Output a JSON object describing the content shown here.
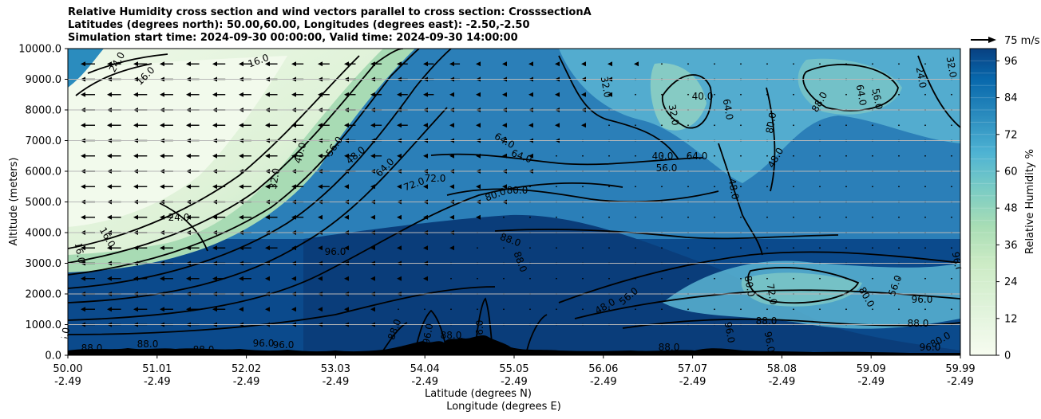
{
  "title_lines": [
    "Relative Humidity cross section and wind vectors parallel to cross section: CrosssectionA",
    "Latitudes (degrees north): 50.00,60.00, Longitudes (degrees east): -2.50,-2.50",
    "Simulation start time: 2024-09-30 00:00:00, Valid time: 2024-09-30 14:00:00"
  ],
  "chart_data": {
    "type": "heatmap",
    "ylabel": "Altitude (meters)",
    "xlabel_lat": "Latitude (degrees N)",
    "xlabel_lon": "Longitude (degrees E)",
    "ylim": [
      0,
      10000
    ],
    "y_ticks": [
      "0.0",
      "1000.0",
      "2000.0",
      "3000.0",
      "4000.0",
      "5000.0",
      "6000.0",
      "7000.0",
      "8000.0",
      "9000.0",
      "10000.0"
    ],
    "x_ticks_lat": [
      "50.00",
      "51.01",
      "52.02",
      "53.03",
      "54.04",
      "55.05",
      "56.06",
      "57.07",
      "58.08",
      "59.09",
      "59.99"
    ],
    "x_ticks_lon": [
      "-2.49",
      "-2.49",
      "-2.49",
      "-2.49",
      "-2.49",
      "-2.49",
      "-2.49",
      "-2.49",
      "-2.49",
      "-2.49",
      "-2.49"
    ],
    "grid": "horizontal",
    "colorbar": {
      "label": "Relative Humidity %",
      "range": [
        0,
        100
      ],
      "ticks": [
        "0",
        "12",
        "24",
        "36",
        "48",
        "60",
        "72",
        "84",
        "96"
      ]
    },
    "wind_key": "75 m/s",
    "contour_labels": [
      "16.0",
      "24.0",
      "32.0",
      "40.0",
      "48.0",
      "56.0",
      "64.0",
      "72.0",
      "80.0",
      "88.0",
      "96.0"
    ],
    "rh_profile": [
      {
        "lat": 50.0,
        "transition_alt": 2600
      },
      {
        "lat": 51.01,
        "transition_alt": 3200
      },
      {
        "lat": 52.02,
        "transition_alt": 4200
      },
      {
        "lat": 53.03,
        "transition_alt": 6200
      },
      {
        "lat": 54.04,
        "transition_alt": 9500
      },
      {
        "lat": 55.05,
        "transition_alt": 10000
      },
      {
        "lat": 56.06,
        "transition_alt": 10000
      },
      {
        "lat": 57.07,
        "transition_alt": 10000
      },
      {
        "lat": 58.08,
        "transition_alt": 10000
      },
      {
        "lat": 59.09,
        "transition_alt": 10000
      },
      {
        "lat": 59.99,
        "transition_alt": 10000
      }
    ],
    "colors": {
      "very_dry": "#f2faec",
      "dry": "#d7efcf",
      "mid_dry": "#a8dbb4",
      "mid": "#5fb5ce",
      "moist": "#2b8cbe",
      "wet": "#0868ac",
      "saturated": "#0b3f7f",
      "terrain": "#000000"
    }
  }
}
